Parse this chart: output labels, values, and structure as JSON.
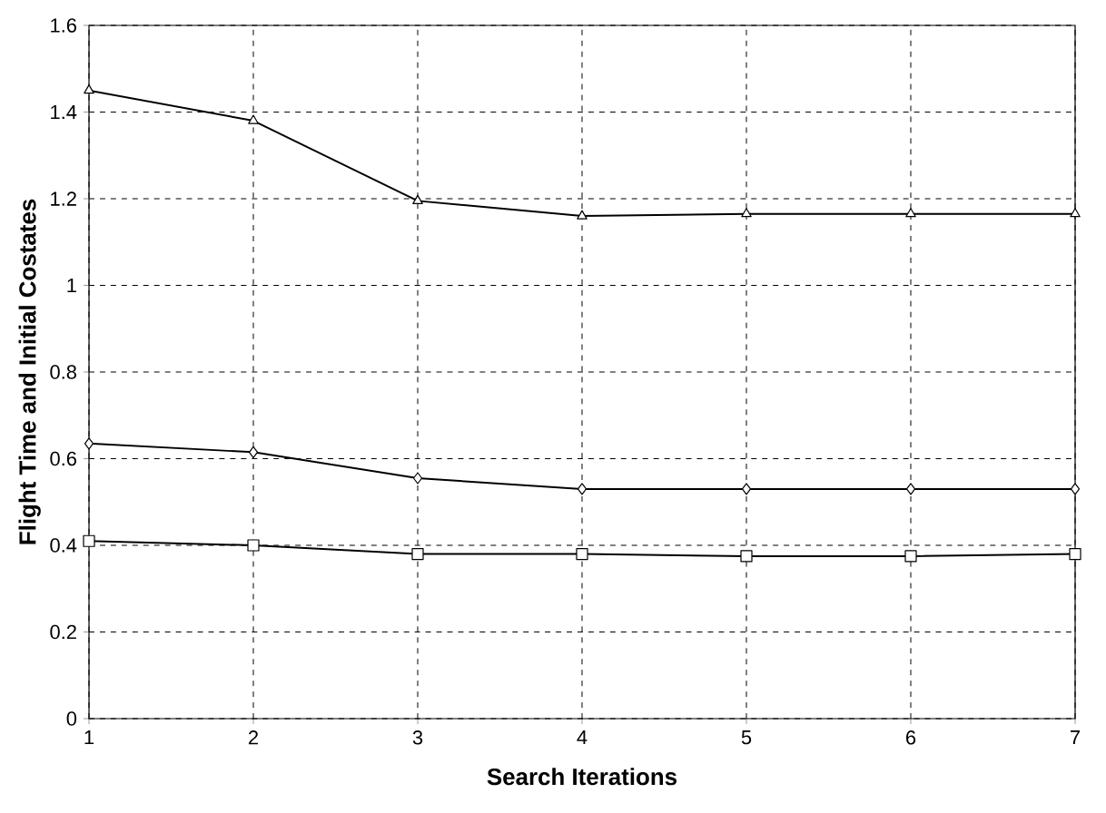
{
  "chart_data": {
    "type": "line",
    "xlabel": "Search Iterations",
    "ylabel": "Flight Time and Initial Costates",
    "x": [
      1,
      2,
      3,
      4,
      5,
      6,
      7
    ],
    "series": [
      {
        "color": "#000000",
        "marker": "triangle",
        "values": [
          1.45,
          1.38,
          1.195,
          1.16,
          1.165,
          1.165,
          1.165
        ]
      },
      {
        "color": "#000000",
        "marker": "diamond",
        "values": [
          0.635,
          0.615,
          0.555,
          0.53,
          0.53,
          0.53,
          0.53
        ]
      },
      {
        "color": "#000000",
        "marker": "square",
        "values": [
          0.41,
          0.4,
          0.38,
          0.38,
          0.375,
          0.375,
          0.38
        ]
      }
    ],
    "xlim": [
      1,
      7
    ],
    "xticks": [
      1,
      2,
      3,
      4,
      5,
      6,
      7
    ],
    "ylim": [
      0,
      1.6
    ],
    "yticks": [
      0,
      0.2,
      0.4,
      0.6,
      0.8,
      1,
      1.2,
      1.4,
      1.6
    ],
    "grid": true,
    "line_style": "solid"
  }
}
